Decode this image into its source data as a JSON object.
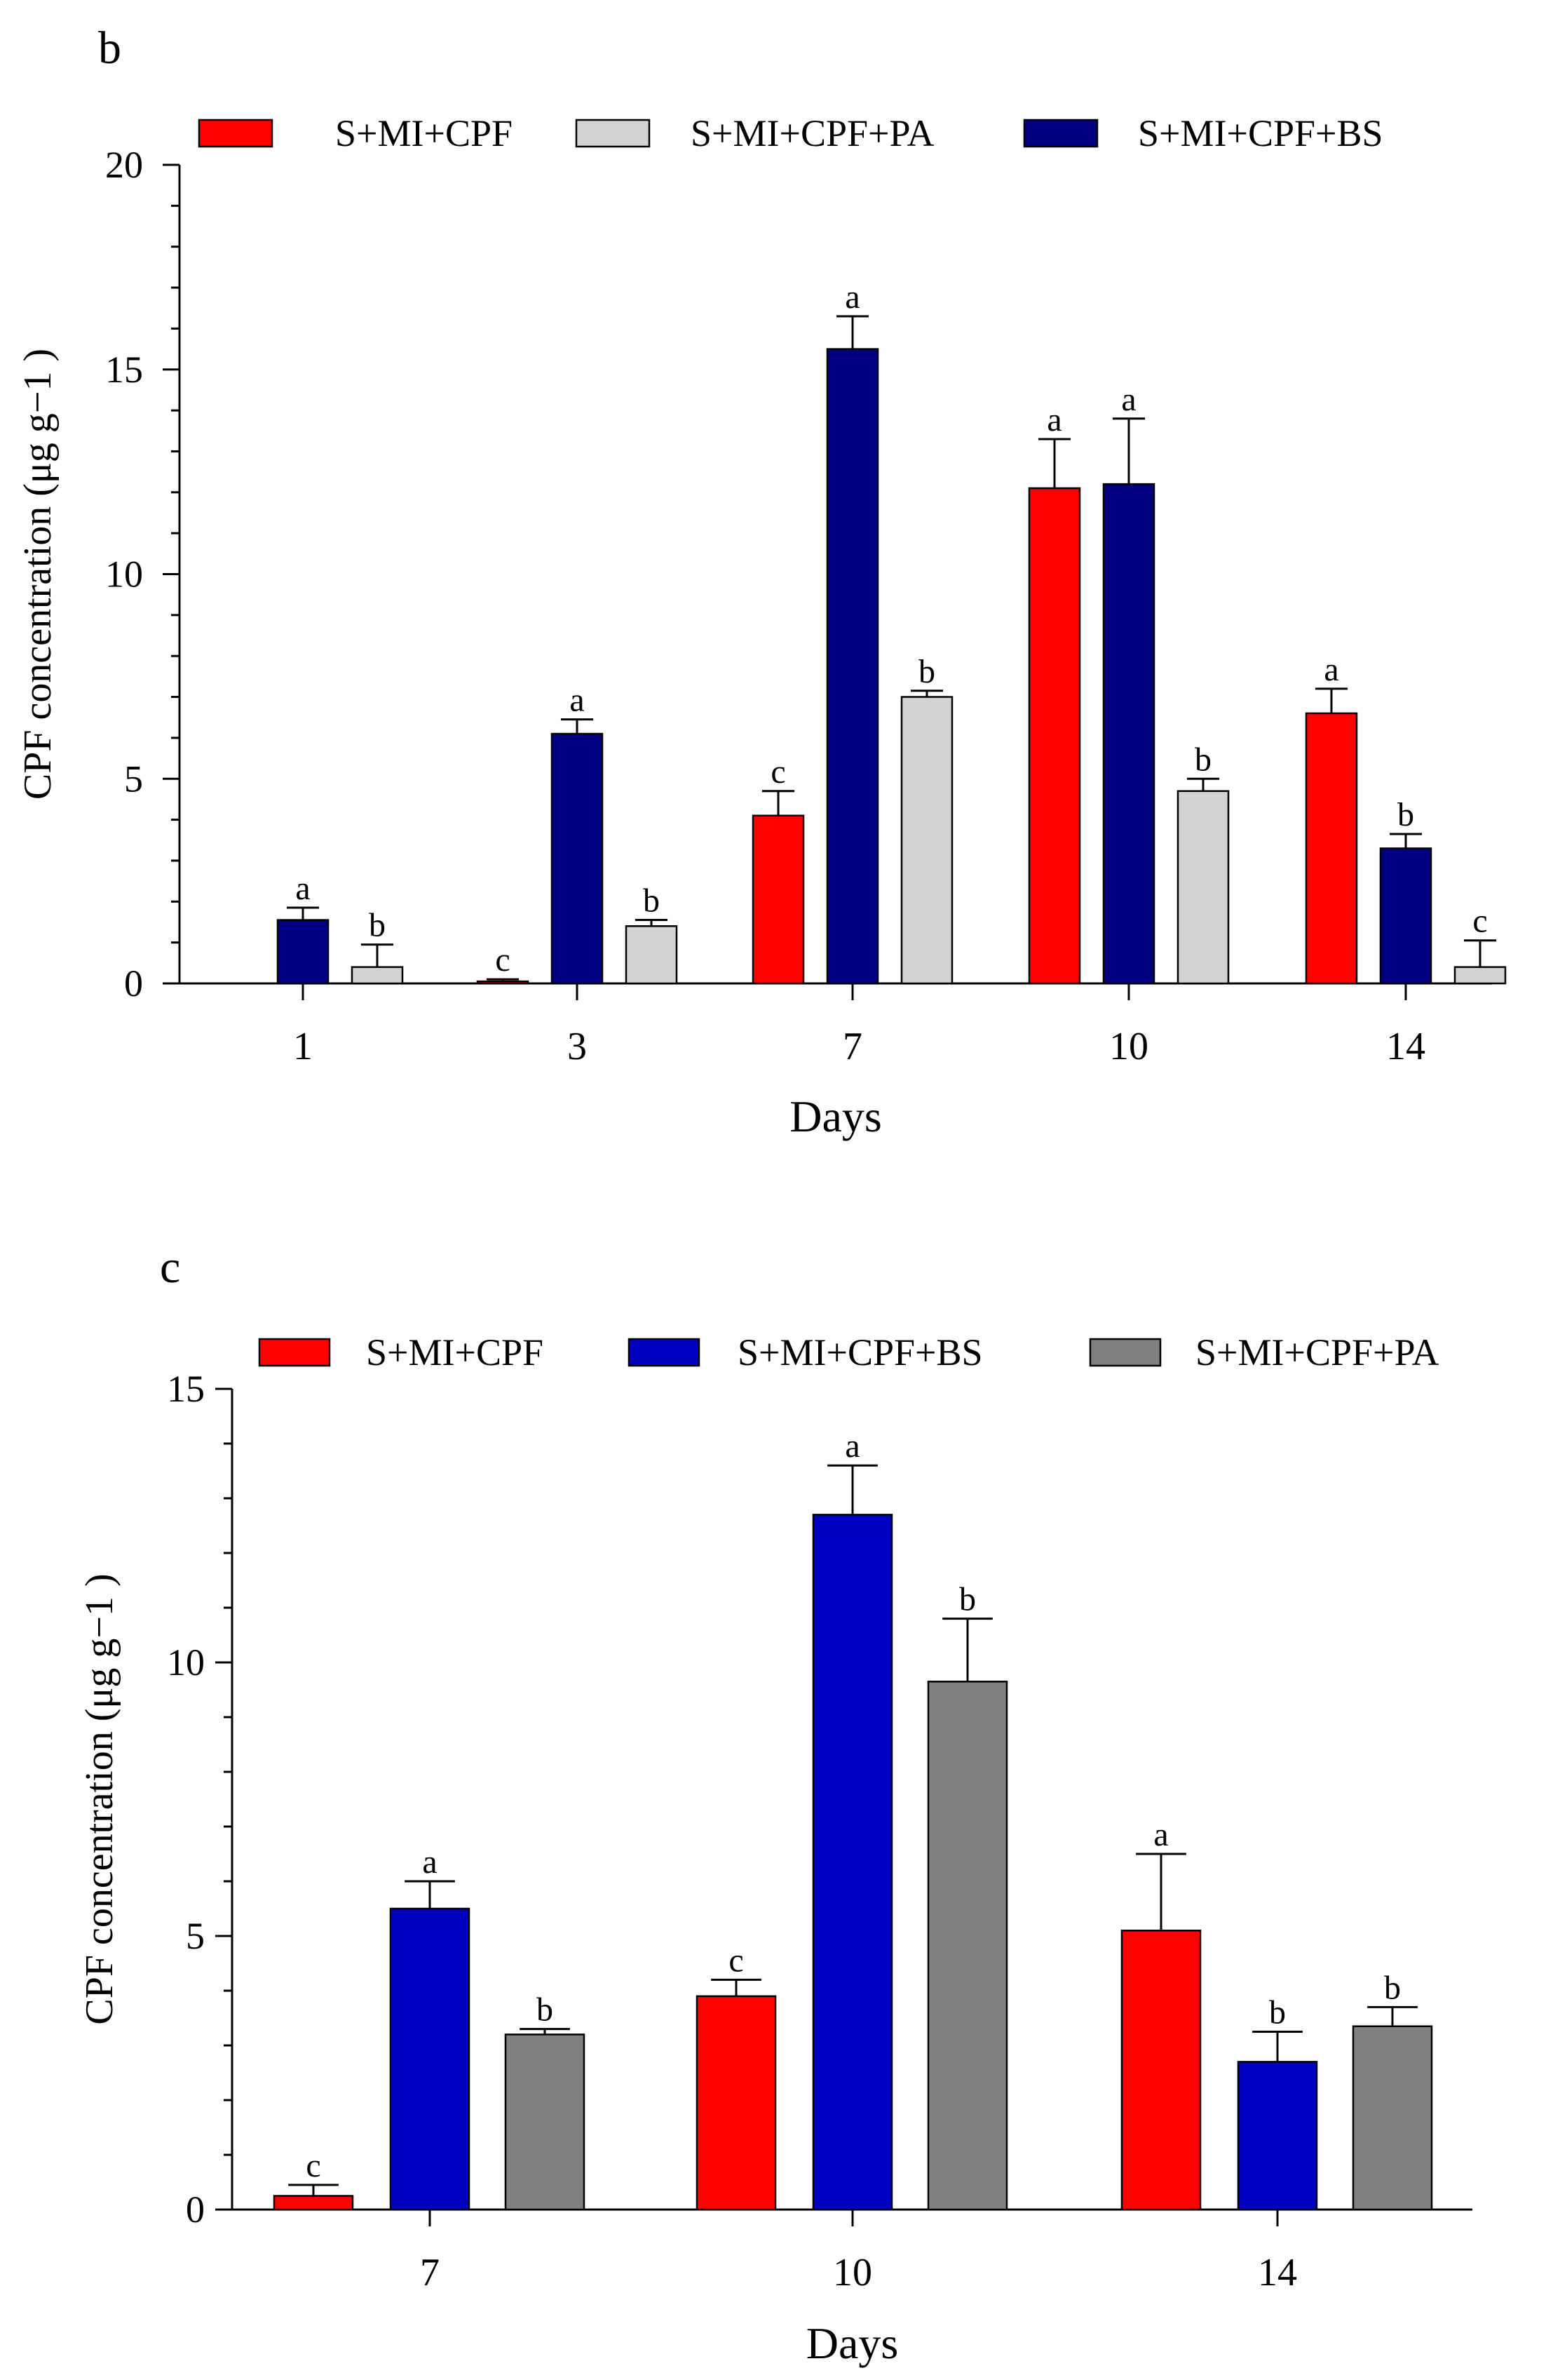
{
  "colors": {
    "red": "#ff0000",
    "navy": "#000080",
    "light_gray": "#d3d3d3",
    "blue": "#0000c0",
    "gray": "#808080"
  },
  "chart_data": [
    {
      "panel_label": "b",
      "type": "bar",
      "title": "",
      "xlabel": "Days",
      "ylabel": "CPF concentration (μg g−1 )",
      "categories": [
        "1",
        "3",
        "7",
        "10",
        "14"
      ],
      "ylim": [
        0,
        20
      ],
      "yticks": [
        "0",
        "5",
        "10",
        "15",
        "20"
      ],
      "legend_position": "top",
      "series": [
        {
          "name": "S+MI+CPF",
          "color": "#ff0000",
          "values": [
            null,
            0.05,
            4.1,
            12.1,
            6.6
          ],
          "errors": [
            null,
            0.05,
            0.6,
            1.2,
            0.6
          ],
          "letters": [
            "",
            "c",
            "c",
            "a",
            "a"
          ]
        },
        {
          "name": "S+MI+CPF+BS",
          "color": "#000080",
          "values": [
            1.55,
            6.1,
            15.5,
            12.2,
            3.3
          ],
          "errors": [
            0.3,
            0.35,
            0.8,
            1.6,
            0.35
          ],
          "letters": [
            "a",
            "a",
            "a",
            "a",
            "b"
          ]
        },
        {
          "name": "S+MI+CPF+PA",
          "color": "#d3d3d3",
          "values": [
            0.4,
            1.4,
            7.0,
            4.7,
            0.4
          ],
          "errors": [
            0.55,
            0.15,
            0.15,
            0.3,
            0.65
          ],
          "letters": [
            "b",
            "b",
            "b",
            "b",
            "c"
          ]
        }
      ],
      "legend_order": [
        "S+MI+CPF",
        "S+MI+CPF+PA",
        "S+MI+CPF+BS"
      ]
    },
    {
      "panel_label": "c",
      "type": "bar",
      "title": "",
      "xlabel": "Days",
      "ylabel": "CPF concentration (μg g−1 )",
      "categories": [
        "7",
        "10",
        "14"
      ],
      "ylim": [
        0,
        15
      ],
      "yticks": [
        "0",
        "5",
        "10",
        "15"
      ],
      "legend_position": "top",
      "series": [
        {
          "name": "S+MI+CPF",
          "color": "#ff0000",
          "values": [
            0.25,
            3.9,
            5.1
          ],
          "errors": [
            0.2,
            0.3,
            1.4
          ],
          "letters": [
            "c",
            "c",
            "a"
          ]
        },
        {
          "name": "S+MI+CPF+BS",
          "color": "#0000c0",
          "values": [
            5.5,
            12.7,
            2.7
          ],
          "errors": [
            0.5,
            0.9,
            0.55
          ],
          "letters": [
            "a",
            "a",
            "b"
          ]
        },
        {
          "name": "S+MI+CPF+PA",
          "color": "#808080",
          "values": [
            3.2,
            9.65,
            3.35
          ],
          "errors": [
            0.1,
            1.15,
            0.35
          ],
          "letters": [
            "b",
            "b",
            "b"
          ]
        }
      ],
      "legend_order": [
        "S+MI+CPF",
        "S+MI+CPF+BS",
        "S+MI+CPF+PA"
      ]
    }
  ]
}
